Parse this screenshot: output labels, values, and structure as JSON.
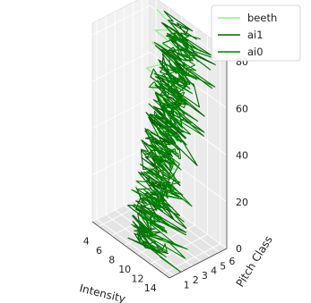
{
  "chart_data": {
    "type": "line",
    "projection": "3d",
    "title": "",
    "xlabel": "Intensity",
    "ylabel": "Pitch Class",
    "zlabel": "",
    "x_ticks": [
      "4",
      "6",
      "8",
      "10",
      "12",
      "14"
    ],
    "y_ticks": [
      "1",
      "2",
      "3",
      "4",
      "5",
      "6"
    ],
    "z_ticks": [
      "0",
      "20",
      "40",
      "60",
      "80"
    ],
    "xlim": [
      3,
      15
    ],
    "ylim": [
      0.5,
      6.8
    ],
    "zlim": [
      0,
      85
    ],
    "grid": true,
    "legend_position": "top-right",
    "series": [
      {
        "name": "beeth",
        "color": "#90ee90",
        "points": [
          [
            4.5,
            6.5,
            82
          ],
          [
            9.0,
            6.2,
            80
          ],
          [
            7.0,
            6.6,
            78
          ],
          [
            5.0,
            6.0,
            75
          ],
          [
            8.5,
            6.4,
            72
          ],
          [
            4.8,
            5.8,
            70
          ],
          [
            9.2,
            6.0,
            66
          ],
          [
            6.0,
            6.4,
            62
          ],
          [
            4.2,
            5.6,
            58
          ],
          [
            8.0,
            6.1,
            55
          ],
          [
            5.5,
            5.9,
            52
          ],
          [
            4.0,
            6.3,
            48
          ],
          [
            8.8,
            5.7,
            45
          ],
          [
            6.5,
            6.2,
            42
          ],
          [
            4.6,
            5.5,
            38
          ],
          [
            9.0,
            6.0,
            35
          ],
          [
            5.0,
            5.8,
            32
          ],
          [
            7.5,
            6.3,
            28
          ],
          [
            4.3,
            5.6,
            25
          ],
          [
            8.2,
            5.9,
            22
          ],
          [
            5.8,
            6.2,
            18
          ],
          [
            4.1,
            5.7,
            15
          ],
          [
            8.6,
            6.0,
            12
          ],
          [
            6.2,
            5.5,
            8
          ],
          [
            4.4,
            6.1,
            5
          ],
          [
            7.8,
            5.8,
            2
          ]
        ]
      },
      {
        "name": "ai1",
        "color": "#006400",
        "center_start": [
          9.5,
          1.5,
          0
        ],
        "center_end": [
          9.0,
          6.0,
          85
        ],
        "segments": 320
      },
      {
        "name": "ai0",
        "color": "#008000",
        "center_start": [
          9.8,
          1.8,
          0
        ],
        "center_end": [
          9.2,
          6.2,
          82
        ],
        "segments": 320
      }
    ]
  }
}
